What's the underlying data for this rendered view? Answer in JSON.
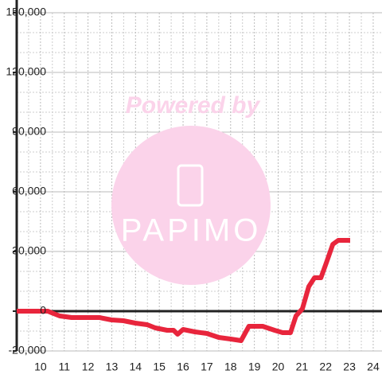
{
  "chart_data": {
    "type": "line",
    "x": [
      9.0,
      10.31,
      10.51,
      10.81,
      11.31,
      12.48,
      12.99,
      13.49,
      13.99,
      14.49,
      14.83,
      15.33,
      15.6,
      15.77,
      16.0,
      16.5,
      17.0,
      17.5,
      18.0,
      18.44,
      18.77,
      19.35,
      19.85,
      20.19,
      20.52,
      20.75,
      21.02,
      21.29,
      21.53,
      21.8,
      22.03,
      22.3,
      22.53,
      23.03
    ],
    "series": [
      {
        "color": "#e8253c",
        "values": [
          0,
          0,
          -1000,
          -2400,
          -3200,
          -3200,
          -4400,
          -4800,
          -6000,
          -6800,
          -8400,
          -9600,
          -9600,
          -11600,
          -9200,
          -10400,
          -11200,
          -13200,
          -14000,
          -14800,
          -7600,
          -7600,
          -9600,
          -10800,
          -10800,
          -2400,
          1200,
          12400,
          16800,
          16800,
          24400,
          33600,
          35600,
          35600
        ]
      }
    ],
    "xlim": [
      9.0,
      24.37
    ],
    "ylim": [
      -20000,
      150000
    ],
    "xticks": [
      10,
      11,
      12,
      13,
      14,
      15,
      16,
      17,
      18,
      19,
      20,
      21,
      22,
      23,
      24
    ],
    "yticks": [
      {
        "value": -20000,
        "label": "-20,000"
      },
      0,
      {
        "value": 30000,
        "label": "30,000"
      },
      {
        "value": 60000,
        "label": "60,000"
      },
      {
        "value": 90000,
        "label": "90,000"
      },
      {
        "value": 120000,
        "label": "120,000"
      },
      {
        "value": 150000,
        "label": "150,000"
      }
    ],
    "y_minor_ticks": [
      -10000,
      10000,
      20000,
      40000,
      50000,
      70000,
      80000,
      100000,
      110000,
      130000,
      140000
    ],
    "x_minor_ticks": [
      9.5,
      10.5,
      11.5,
      12.5,
      13.5,
      14.5,
      15.5,
      16.5,
      17.5,
      18.5,
      19.5,
      20.5,
      21.5,
      22.5,
      23.5
    ],
    "grid": true,
    "watermark": {
      "line1": "Powered by",
      "line2": "PAPIMO"
    }
  }
}
